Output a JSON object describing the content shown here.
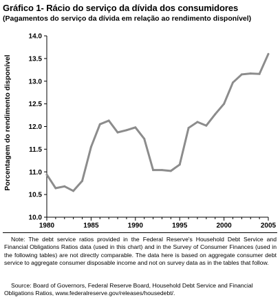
{
  "chart_data": {
    "type": "line",
    "title": "Gráfico 1- Rácio do serviço da dívida dos consumidores",
    "subtitle": "(Pagamentos do serviço da dívida em relação ao rendimento disponível)",
    "xlabel": "",
    "ylabel": "Porcentagem do rendimento disponível",
    "xlim": [
      1980,
      2005
    ],
    "ylim": [
      10.0,
      14.0
    ],
    "x_ticks": [
      "1980",
      "1985",
      "1990",
      "1995",
      "2000",
      "2005"
    ],
    "y_ticks": [
      "10.0",
      "10.5",
      "11.0",
      "11.5",
      "12.0",
      "12.5",
      "13.0",
      "13.5",
      "14.0"
    ],
    "grid": false,
    "line_color": "#8c8c8c",
    "x": [
      1980,
      1981,
      1982,
      1983,
      1984,
      1985,
      1986,
      1987,
      1988,
      1989,
      1990,
      1991,
      1992,
      1993,
      1994,
      1995,
      1996,
      1997,
      1998,
      1999,
      2000,
      2001,
      2002,
      2003,
      2004,
      2005
    ],
    "series": [
      {
        "values": [
          10.94,
          10.64,
          10.68,
          10.58,
          10.8,
          11.55,
          12.05,
          12.13,
          11.87,
          11.92,
          11.98,
          11.73,
          11.04,
          11.04,
          11.02,
          11.16,
          11.97,
          12.1,
          12.02,
          12.27,
          12.5,
          12.97,
          13.15,
          13.17,
          13.16,
          13.6
        ]
      }
    ]
  },
  "notes": {
    "note": "Note: The debt service ratios provided in the Federal Reserve's Household Debt Service and Financial Obligations Ratios data (used in this chart) and in the Survey of Consumer Finances (used in the following tables) are not directly comparable. The data here is based on aggregate consumer debt service to aggregate consumer disposable income and not on survey data as in the tables that follow.",
    "source": "Source: Board of Governors, Federal Reserve Board, Household Debt Service and Financial Obligations Ratios, www.federalreserve.gov/releases/housedebt/."
  }
}
